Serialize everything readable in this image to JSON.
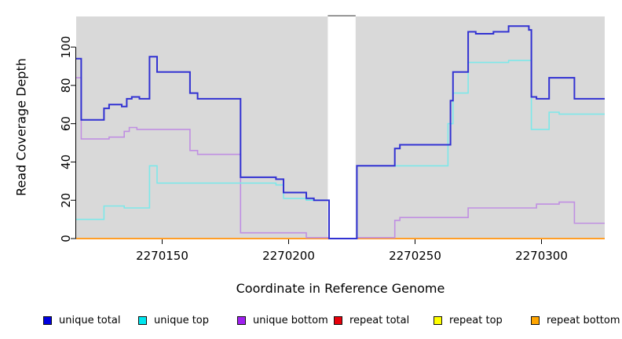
{
  "chart_data": {
    "type": "line",
    "subtype": "step-coverage",
    "title": "",
    "xlabel": "Coordinate in Reference Genome",
    "ylabel": "Read Coverage Depth",
    "xlim": [
      2270116,
      2270325
    ],
    "ylim": [
      0,
      116
    ],
    "x_ticks": [
      2270150,
      2270200,
      2270250,
      2270300
    ],
    "y_ticks": [
      0,
      20,
      40,
      60,
      80,
      100
    ],
    "grid": false,
    "legend_position": "bottom",
    "panel_bg": "#d9d9d9",
    "masked_region": {
      "x1": 2270215.5,
      "x2": 2270226.5,
      "fill": "#ffffff",
      "marker_color": "#8c8c8c"
    },
    "draw_order": [
      3,
      4,
      5,
      2,
      1,
      0
    ],
    "series": [
      {
        "name": "unique total",
        "legend_color": "#0000e0",
        "line_color": "#3232d2",
        "line_width": 2,
        "steps": [
          [
            2270116,
            94
          ],
          [
            2270118,
            62
          ],
          [
            2270127,
            68
          ],
          [
            2270129,
            70
          ],
          [
            2270134,
            69
          ],
          [
            2270136,
            73
          ],
          [
            2270138,
            74
          ],
          [
            2270141,
            73
          ],
          [
            2270145,
            95
          ],
          [
            2270148,
            87
          ],
          [
            2270161,
            76
          ],
          [
            2270164,
            73
          ],
          [
            2270181,
            32
          ],
          [
            2270195,
            31
          ],
          [
            2270198,
            24
          ],
          [
            2270207,
            21
          ],
          [
            2270210,
            20
          ],
          [
            2270216,
            0
          ],
          [
            2270227,
            38
          ],
          [
            2270242,
            47
          ],
          [
            2270244,
            49
          ],
          [
            2270264,
            72
          ],
          [
            2270265,
            87
          ],
          [
            2270271,
            108
          ],
          [
            2270274,
            107
          ],
          [
            2270281,
            108
          ],
          [
            2270287,
            111
          ],
          [
            2270295,
            109
          ],
          [
            2270296,
            74
          ],
          [
            2270298,
            73
          ],
          [
            2270303,
            84
          ],
          [
            2270313,
            73
          ]
        ]
      },
      {
        "name": "unique top",
        "legend_color": "#00e5ee",
        "line_color": "#7de8e9",
        "line_width": 1.6,
        "steps": [
          [
            2270116,
            10
          ],
          [
            2270127,
            17
          ],
          [
            2270135,
            16
          ],
          [
            2270145,
            38
          ],
          [
            2270148,
            29
          ],
          [
            2270195,
            28
          ],
          [
            2270198,
            21
          ],
          [
            2270207,
            20
          ],
          [
            2270216,
            0
          ],
          [
            2270227,
            38
          ],
          [
            2270263,
            60
          ],
          [
            2270265,
            76
          ],
          [
            2270271,
            92
          ],
          [
            2270287,
            93
          ],
          [
            2270296,
            57
          ],
          [
            2270303,
            66
          ],
          [
            2270307,
            65
          ]
        ]
      },
      {
        "name": "unique bottom",
        "legend_color": "#a020f0",
        "line_color": "#c08fe2",
        "line_width": 1.6,
        "steps": [
          [
            2270116,
            84
          ],
          [
            2270118,
            52
          ],
          [
            2270129,
            53
          ],
          [
            2270135,
            56
          ],
          [
            2270137,
            58
          ],
          [
            2270140,
            57
          ],
          [
            2270161,
            46
          ],
          [
            2270164,
            44
          ],
          [
            2270181,
            3
          ],
          [
            2270207,
            0.5
          ],
          [
            2270216,
            0
          ],
          [
            2270227,
            0.5
          ],
          [
            2270242,
            9.5
          ],
          [
            2270244,
            11
          ],
          [
            2270271,
            16
          ],
          [
            2270298,
            18
          ],
          [
            2270307,
            19
          ],
          [
            2270313,
            8
          ]
        ]
      },
      {
        "name": "repeat total",
        "legend_color": "#e8000a",
        "line_color": "#dc143c",
        "line_width": 1.6,
        "steps": [
          [
            2270116,
            0
          ]
        ]
      },
      {
        "name": "repeat top",
        "legend_color": "#ffff00",
        "line_color": "#ffff00",
        "line_width": 1.6,
        "steps": [
          [
            2270116,
            0
          ]
        ]
      },
      {
        "name": "repeat bottom",
        "legend_color": "#ffa500",
        "line_color": "#ff9e28",
        "line_width": 2,
        "steps": [
          [
            2270116,
            0
          ]
        ]
      }
    ]
  }
}
